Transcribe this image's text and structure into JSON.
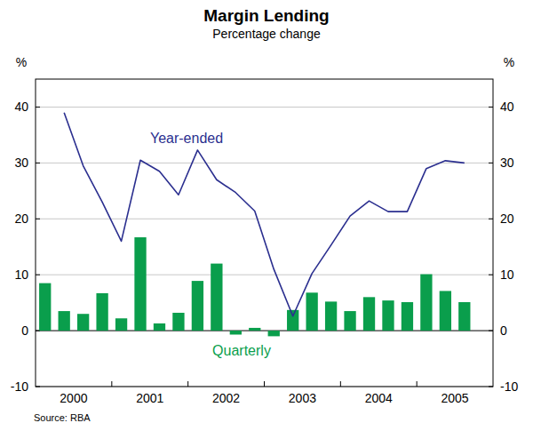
{
  "chart_data": {
    "type": "bar",
    "title": "Margin Lending",
    "subtitle": "Percentage change",
    "ylabel": "%",
    "source": "Source: RBA",
    "categories": [
      "2000",
      null,
      null,
      null,
      "2001",
      null,
      null,
      null,
      "2002",
      null,
      null,
      null,
      "2003",
      null,
      null,
      null,
      "2004",
      null,
      null,
      null,
      "2005",
      null,
      null,
      null
    ],
    "series": [
      {
        "name": "Quarterly",
        "type": "bar",
        "color": "#0a9e4c",
        "values": [
          8.5,
          3.5,
          3,
          6.7,
          2.2,
          16.7,
          1.3,
          3.2,
          8.9,
          12,
          -0.7,
          0.5,
          -1,
          3.7,
          6.8,
          5.2,
          3.5,
          6,
          5.4,
          5.1,
          10.1,
          7.1,
          5.1,
          null
        ]
      },
      {
        "name": "Year-ended",
        "type": "line",
        "color": "#2b2f8f",
        "values": [
          null,
          39,
          29.5,
          23,
          16,
          30.5,
          28.5,
          24.3,
          32.3,
          27,
          24.7,
          21.4,
          11,
          2.6,
          10.2,
          15.3,
          20.5,
          23.2,
          21.3,
          21.3,
          29,
          30.4,
          30,
          null
        ]
      }
    ],
    "ylim": [
      -10,
      45
    ],
    "yticks": [
      -10,
      0,
      10,
      20,
      30,
      40
    ],
    "grid": true
  }
}
